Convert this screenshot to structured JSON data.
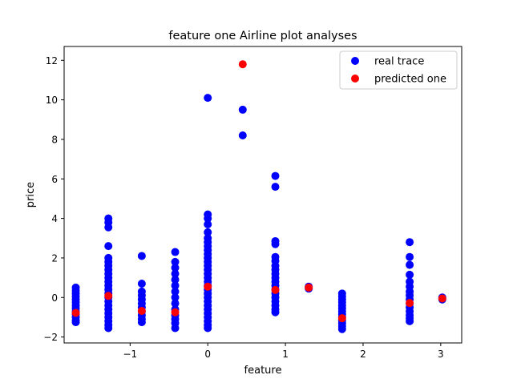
{
  "chart_data": {
    "type": "scatter",
    "title": "feature one Airline plot analyses",
    "xlabel": "feature",
    "ylabel": "price",
    "xlim": [
      -1.85,
      3.27
    ],
    "ylim": [
      -2.3,
      12.7
    ],
    "xticks": [
      -1,
      0,
      1,
      2,
      3
    ],
    "xtick_labels": [
      "−1",
      "0",
      "1",
      "2",
      "3"
    ],
    "yticks": [
      -2,
      0,
      2,
      4,
      6,
      8,
      10,
      12
    ],
    "ytick_labels": [
      "−2",
      "0",
      "2",
      "4",
      "6",
      "8",
      "10",
      "12"
    ],
    "grid": false,
    "legend_position": "top-right",
    "series": [
      {
        "name": "real trace",
        "color": "#0000ff",
        "points": [
          [
            -1.7,
            0.5
          ],
          [
            -1.7,
            0.35
          ],
          [
            -1.7,
            0.2
          ],
          [
            -1.7,
            0.05
          ],
          [
            -1.7,
            -0.1
          ],
          [
            -1.7,
            -0.25
          ],
          [
            -1.7,
            -0.4
          ],
          [
            -1.7,
            -0.55
          ],
          [
            -1.7,
            -0.7
          ],
          [
            -1.7,
            -0.85
          ],
          [
            -1.7,
            -1.0
          ],
          [
            -1.7,
            -1.15
          ],
          [
            -1.7,
            -1.25
          ],
          [
            -1.28,
            4.0
          ],
          [
            -1.28,
            3.8
          ],
          [
            -1.28,
            3.55
          ],
          [
            -1.28,
            2.6
          ],
          [
            -1.28,
            2.0
          ],
          [
            -1.28,
            1.8
          ],
          [
            -1.28,
            1.6
          ],
          [
            -1.28,
            1.4
          ],
          [
            -1.28,
            1.2
          ],
          [
            -1.28,
            1.0
          ],
          [
            -1.28,
            0.8
          ],
          [
            -1.28,
            0.6
          ],
          [
            -1.28,
            0.4
          ],
          [
            -1.28,
            0.2
          ],
          [
            -1.28,
            0.0
          ],
          [
            -1.28,
            -0.2
          ],
          [
            -1.28,
            -0.4
          ],
          [
            -1.28,
            -0.6
          ],
          [
            -1.28,
            -0.8
          ],
          [
            -1.28,
            -1.0
          ],
          [
            -1.28,
            -1.2
          ],
          [
            -1.28,
            -1.4
          ],
          [
            -1.28,
            -1.55
          ],
          [
            -0.85,
            2.1
          ],
          [
            -0.85,
            0.7
          ],
          [
            -0.85,
            0.3
          ],
          [
            -0.85,
            0.1
          ],
          [
            -0.85,
            -0.1
          ],
          [
            -0.85,
            -0.3
          ],
          [
            -0.85,
            -0.5
          ],
          [
            -0.85,
            -0.7
          ],
          [
            -0.85,
            -0.9
          ],
          [
            -0.85,
            -1.1
          ],
          [
            -0.85,
            -1.25
          ],
          [
            -0.42,
            2.3
          ],
          [
            -0.42,
            1.8
          ],
          [
            -0.42,
            1.5
          ],
          [
            -0.42,
            1.2
          ],
          [
            -0.42,
            0.9
          ],
          [
            -0.42,
            0.6
          ],
          [
            -0.42,
            0.3
          ],
          [
            -0.42,
            0.0
          ],
          [
            -0.42,
            -0.3
          ],
          [
            -0.42,
            -0.6
          ],
          [
            -0.42,
            -0.9
          ],
          [
            -0.42,
            -1.1
          ],
          [
            -0.42,
            -1.3
          ],
          [
            -0.42,
            -1.55
          ],
          [
            0.0,
            10.1
          ],
          [
            0.0,
            4.2
          ],
          [
            0.0,
            4.0
          ],
          [
            0.0,
            3.7
          ],
          [
            0.0,
            3.3
          ],
          [
            0.0,
            3.0
          ],
          [
            0.0,
            2.8
          ],
          [
            0.0,
            2.6
          ],
          [
            0.0,
            2.4
          ],
          [
            0.0,
            2.2
          ],
          [
            0.0,
            2.0
          ],
          [
            0.0,
            1.8
          ],
          [
            0.0,
            1.6
          ],
          [
            0.0,
            1.4
          ],
          [
            0.0,
            1.2
          ],
          [
            0.0,
            1.0
          ],
          [
            0.0,
            0.8
          ],
          [
            0.0,
            0.6
          ],
          [
            0.0,
            0.4
          ],
          [
            0.0,
            0.2
          ],
          [
            0.0,
            0.0
          ],
          [
            0.0,
            -0.2
          ],
          [
            0.0,
            -0.4
          ],
          [
            0.0,
            -0.6
          ],
          [
            0.0,
            -0.8
          ],
          [
            0.0,
            -1.0
          ],
          [
            0.0,
            -1.2
          ],
          [
            0.0,
            -1.4
          ],
          [
            0.0,
            -1.55
          ],
          [
            0.45,
            9.5
          ],
          [
            0.45,
            8.2
          ],
          [
            0.87,
            6.15
          ],
          [
            0.87,
            5.6
          ],
          [
            0.87,
            2.85
          ],
          [
            0.87,
            2.7
          ],
          [
            0.87,
            2.05
          ],
          [
            0.87,
            1.85
          ],
          [
            0.87,
            1.6
          ],
          [
            0.87,
            1.4
          ],
          [
            0.87,
            1.2
          ],
          [
            0.87,
            1.0
          ],
          [
            0.87,
            0.8
          ],
          [
            0.87,
            0.6
          ],
          [
            0.87,
            0.4
          ],
          [
            0.87,
            0.2
          ],
          [
            0.87,
            0.0
          ],
          [
            0.87,
            -0.2
          ],
          [
            0.87,
            -0.4
          ],
          [
            0.87,
            -0.6
          ],
          [
            0.87,
            -0.75
          ],
          [
            1.3,
            0.55
          ],
          [
            1.3,
            0.45
          ],
          [
            1.73,
            0.2
          ],
          [
            1.73,
            0.05
          ],
          [
            1.73,
            -0.1
          ],
          [
            1.73,
            -0.25
          ],
          [
            1.73,
            -0.4
          ],
          [
            1.73,
            -0.55
          ],
          [
            1.73,
            -0.7
          ],
          [
            1.73,
            -0.85
          ],
          [
            1.73,
            -1.0
          ],
          [
            1.73,
            -1.15
          ],
          [
            1.73,
            -1.3
          ],
          [
            1.73,
            -1.45
          ],
          [
            1.73,
            -1.6
          ],
          [
            2.6,
            2.8
          ],
          [
            2.6,
            2.05
          ],
          [
            2.6,
            1.65
          ],
          [
            2.6,
            1.15
          ],
          [
            2.6,
            0.8
          ],
          [
            2.6,
            0.55
          ],
          [
            2.6,
            0.3
          ],
          [
            2.6,
            0.1
          ],
          [
            2.6,
            -0.1
          ],
          [
            2.6,
            -0.3
          ],
          [
            2.6,
            -0.5
          ],
          [
            2.6,
            -0.7
          ],
          [
            2.6,
            -0.9
          ],
          [
            2.6,
            -1.05
          ],
          [
            2.6,
            -1.2
          ],
          [
            3.02,
            0.0
          ],
          [
            3.02,
            -0.1
          ]
        ]
      },
      {
        "name": "predicted one",
        "color": "#ff0000",
        "points": [
          [
            -1.7,
            -0.78
          ],
          [
            -1.28,
            0.08
          ],
          [
            -0.85,
            -0.68
          ],
          [
            -0.42,
            -0.75
          ],
          [
            0.0,
            0.55
          ],
          [
            0.45,
            11.8
          ],
          [
            0.87,
            0.38
          ],
          [
            1.3,
            0.5
          ],
          [
            1.73,
            -1.05
          ],
          [
            2.6,
            -0.28
          ],
          [
            3.02,
            -0.05
          ]
        ]
      }
    ]
  }
}
